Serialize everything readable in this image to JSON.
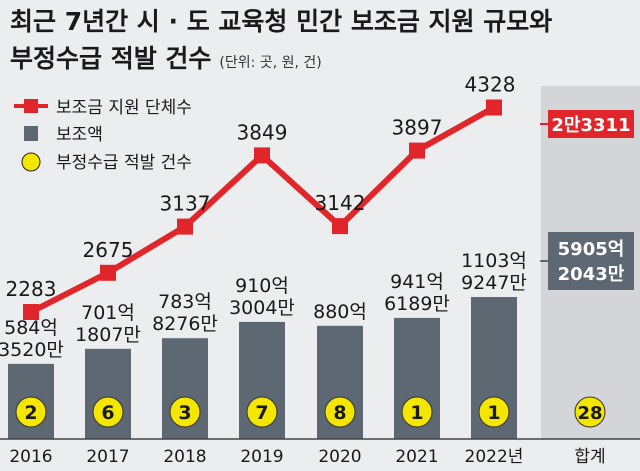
{
  "title_line1": "최근 7년간 시 · 도 교육청 민간 보조금 지원 규모와",
  "title_line2": "부정수급 적발 건수",
  "unit_note": "(단위: 곳, 원, 건)",
  "colors": {
    "line": "#e0262b",
    "bar": "#5d6873",
    "circle": "#f5e600",
    "total_panel": "#d3d5d8",
    "background": "#ecedef"
  },
  "chart_data": {
    "type": "bar+line",
    "categories": [
      "2016",
      "2017",
      "2018",
      "2019",
      "2020",
      "2021",
      "2022년"
    ],
    "total_label": "합계",
    "legend": [
      {
        "label": "보조금 지원 단체수",
        "symbol": "red-line-marker"
      },
      {
        "label": "보조액",
        "symbol": "gray-bar"
      },
      {
        "label": "부정수급 적발 건수",
        "symbol": "yellow-circle"
      }
    ],
    "line": {
      "name": "보조금 지원 단체수",
      "values": [
        2283,
        2675,
        3137,
        3849,
        3142,
        3897,
        4328
      ],
      "labels": [
        "2283",
        "2675",
        "3137",
        "3849",
        "3142",
        "3897",
        "4328"
      ],
      "total_label": "2만3311"
    },
    "bars": {
      "name": "보조액",
      "values_won": [
        58435200000,
        70118070000,
        78382760000,
        91030040000,
        88000000000,
        94161890000,
        110392470000
      ],
      "labels": [
        [
          "584억",
          "3520만"
        ],
        [
          "701억",
          "1807만"
        ],
        [
          "783억",
          "8276만"
        ],
        [
          "910억",
          "3004만"
        ],
        [
          "880억"
        ],
        [
          "941억",
          "6189만"
        ],
        [
          "1103억",
          "9247만"
        ]
      ],
      "total_label": [
        "5905억",
        "2043만"
      ]
    },
    "circles": {
      "name": "부정수급 적발 건수",
      "values": [
        2,
        6,
        3,
        7,
        8,
        1,
        1
      ],
      "labels": [
        "2",
        "6",
        "3",
        "7",
        "8",
        "1",
        "1"
      ],
      "total_label": "28"
    }
  }
}
